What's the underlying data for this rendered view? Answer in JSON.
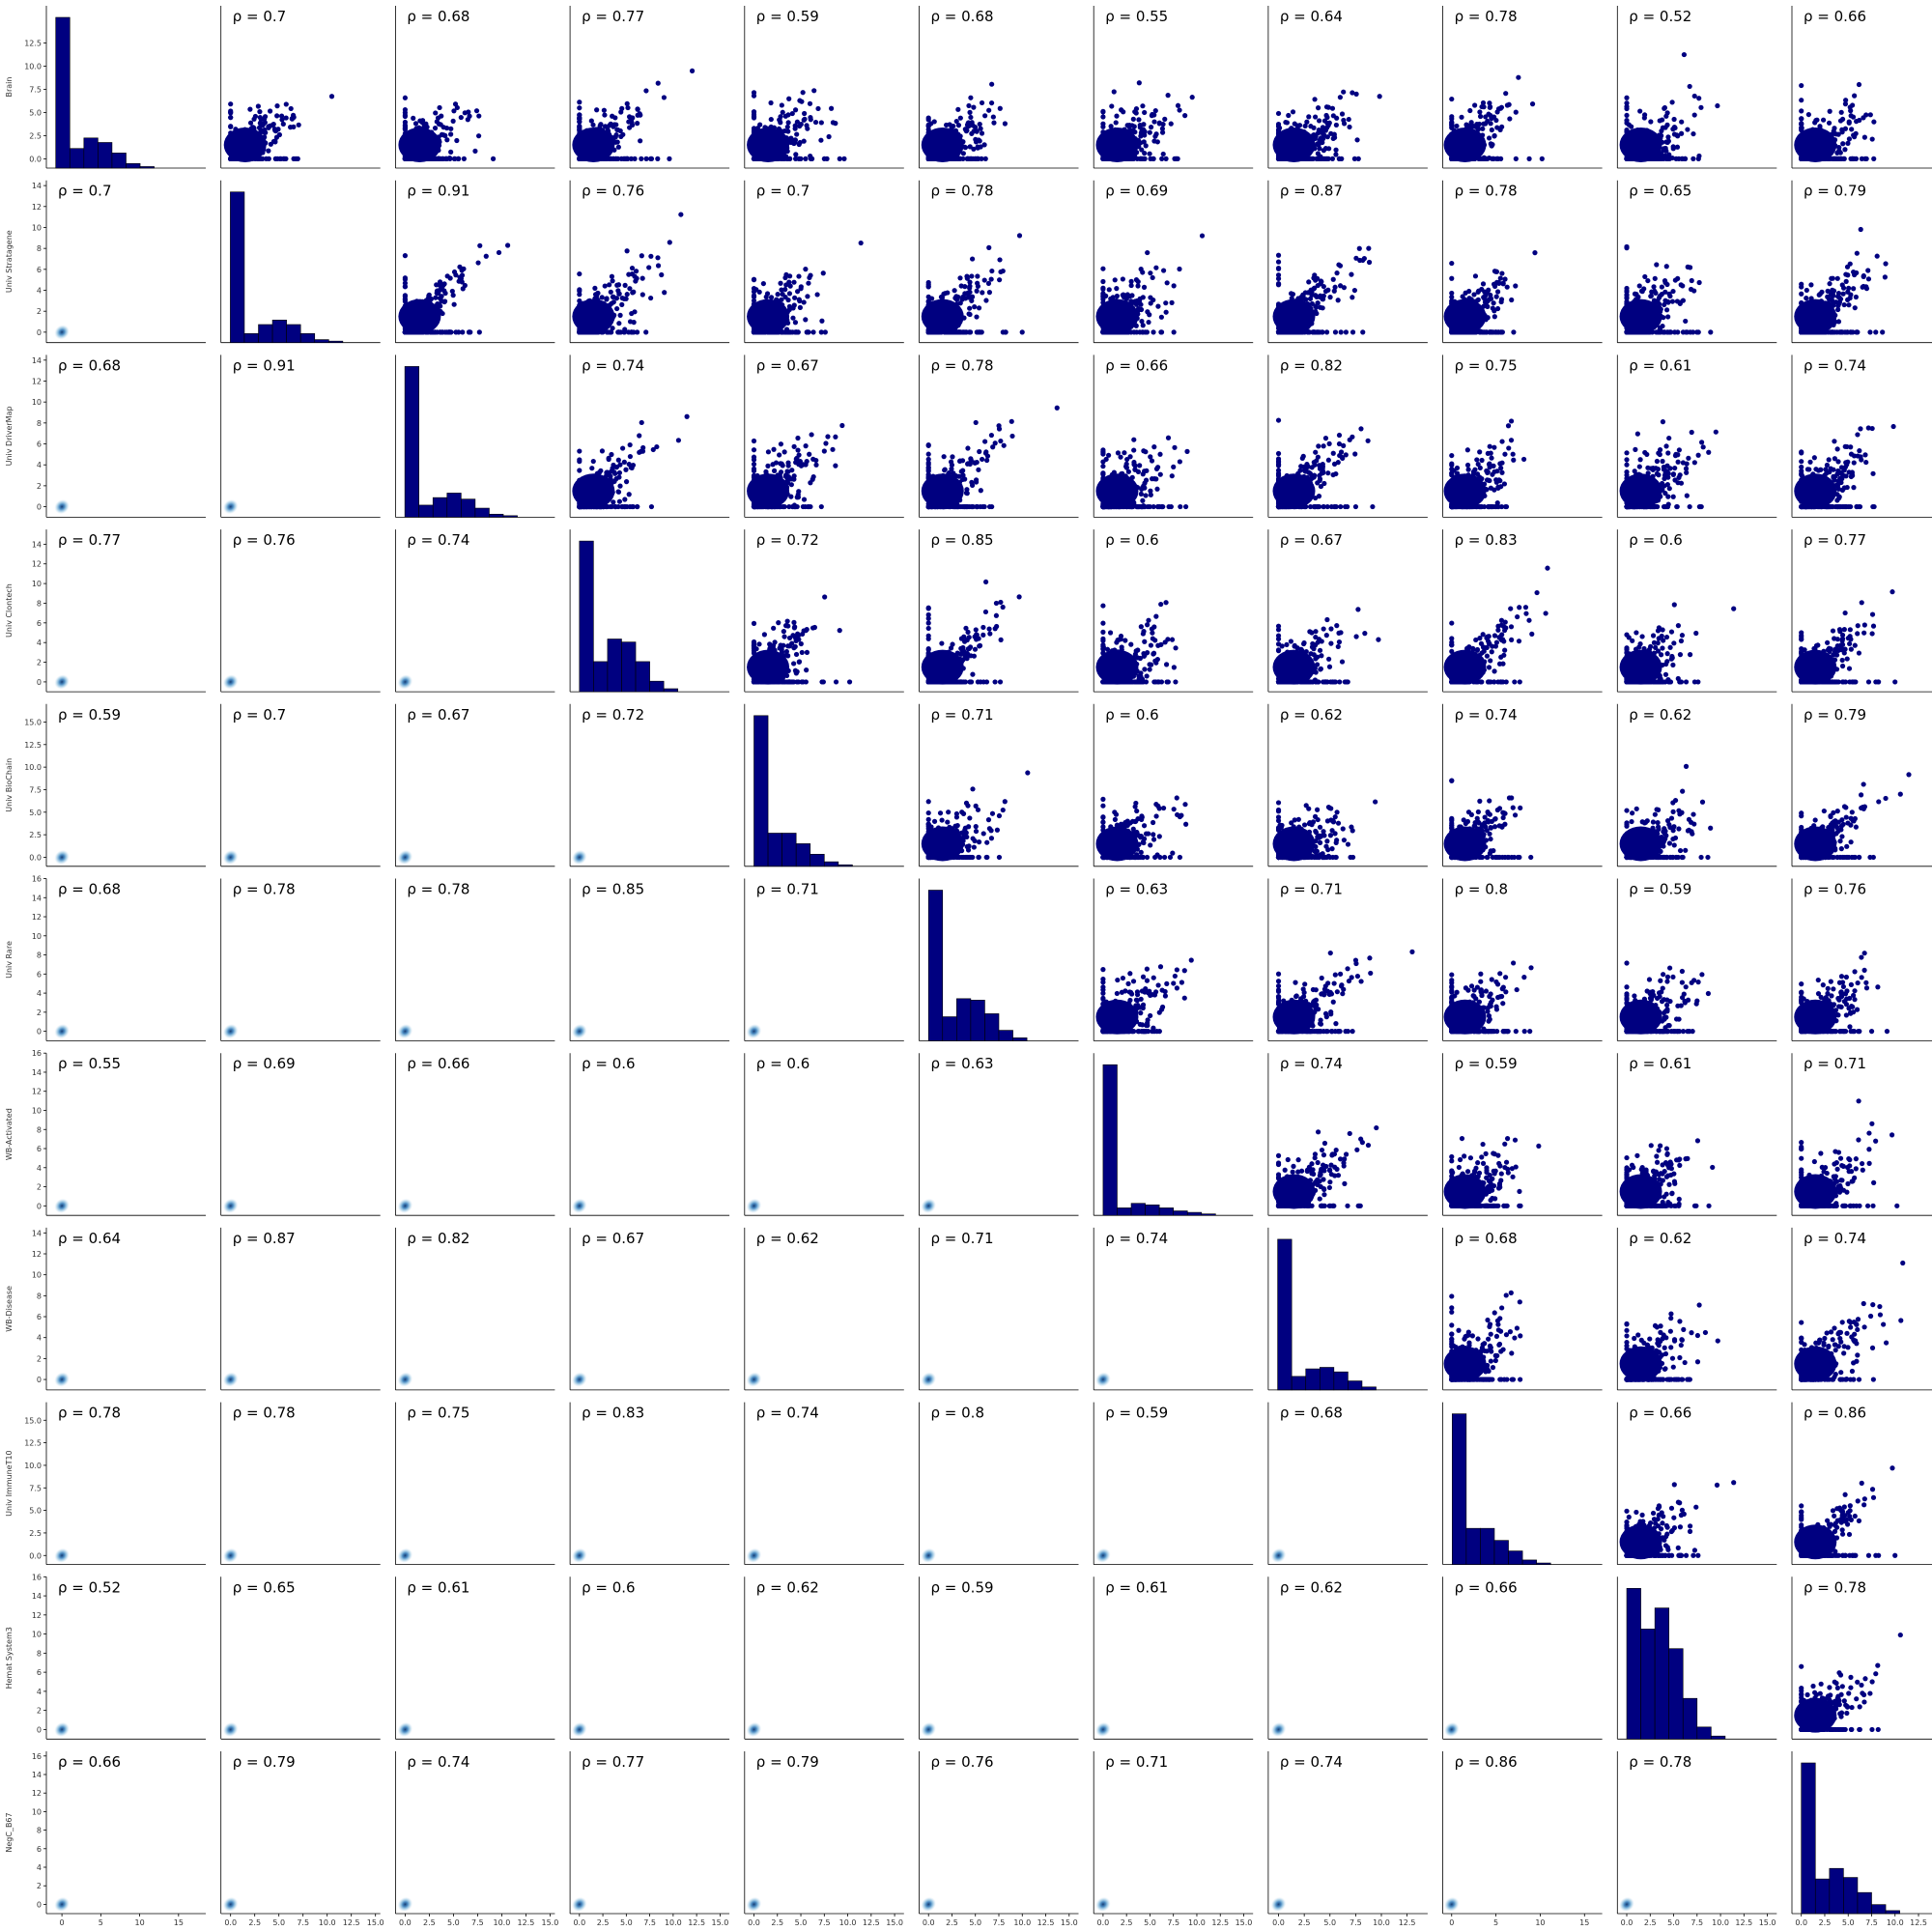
{
  "chart_data": {
    "type": "pairplot",
    "variables": [
      "Brain",
      "Univ Stratagene",
      "Univ DriverMap",
      "Univ Clontech",
      "Univ BioChain",
      "Univ Rare",
      "WB-Activated",
      "WB-Disease",
      "Univ ImmuneT10",
      "Hemat System3",
      "NegC_B67"
    ],
    "correlations": [
      [
        null,
        0.7,
        0.68,
        0.77,
        0.59,
        0.68,
        0.55,
        0.64,
        0.78,
        0.52,
        0.66
      ],
      [
        0.7,
        null,
        0.91,
        0.76,
        0.7,
        0.78,
        0.69,
        0.87,
        0.78,
        0.65,
        0.79
      ],
      [
        0.68,
        0.91,
        null,
        0.74,
        0.67,
        0.78,
        0.66,
        0.82,
        0.75,
        0.61,
        0.74
      ],
      [
        0.77,
        0.76,
        0.74,
        null,
        0.72,
        0.85,
        0.6,
        0.67,
        0.83,
        0.6,
        0.77
      ],
      [
        0.59,
        0.7,
        0.67,
        0.72,
        null,
        0.71,
        0.6,
        0.62,
        0.74,
        0.62,
        0.79
      ],
      [
        0.68,
        0.78,
        0.78,
        0.85,
        0.71,
        null,
        0.63,
        0.71,
        0.8,
        0.59,
        0.76
      ],
      [
        0.55,
        0.69,
        0.66,
        0.6,
        0.6,
        0.63,
        null,
        0.74,
        0.59,
        0.61,
        0.71
      ],
      [
        0.64,
        0.87,
        0.82,
        0.67,
        0.62,
        0.71,
        0.74,
        null,
        0.68,
        0.62,
        0.74
      ],
      [
        0.78,
        0.78,
        0.75,
        0.83,
        0.74,
        0.8,
        0.59,
        0.68,
        null,
        0.66,
        0.86
      ],
      [
        0.52,
        0.65,
        0.61,
        0.6,
        0.62,
        0.59,
        0.61,
        0.62,
        0.66,
        null,
        0.78
      ],
      [
        0.66,
        0.79,
        0.74,
        0.77,
        0.79,
        0.76,
        0.71,
        0.74,
        0.86,
        0.78,
        null
      ]
    ],
    "diagonal_histograms": {
      "bin_edges": [
        0,
        1.5,
        3,
        4.5,
        6,
        7.5,
        9,
        10.5,
        12,
        13.5,
        15
      ],
      "relative_heights": [
        [
          1.0,
          0.13,
          0.2,
          0.17,
          0.1,
          0.03,
          0.01,
          0,
          0,
          0
        ],
        [
          1.0,
          0.06,
          0.12,
          0.15,
          0.12,
          0.06,
          0.02,
          0.01,
          0,
          0
        ],
        [
          1.0,
          0.08,
          0.13,
          0.16,
          0.12,
          0.06,
          0.02,
          0.01,
          0,
          0
        ],
        [
          1.0,
          0.2,
          0.35,
          0.33,
          0.2,
          0.07,
          0.02,
          0,
          0,
          0
        ],
        [
          1.0,
          0.22,
          0.22,
          0.15,
          0.08,
          0.03,
          0.01,
          0,
          0,
          0
        ],
        [
          1.0,
          0.16,
          0.28,
          0.27,
          0.18,
          0.07,
          0.02,
          0,
          0,
          0
        ],
        [
          1.0,
          0.05,
          0.08,
          0.07,
          0.05,
          0.03,
          0.02,
          0.01,
          0,
          0
        ],
        [
          1.0,
          0.09,
          0.14,
          0.15,
          0.12,
          0.06,
          0.02,
          0,
          0,
          0
        ],
        [
          1.0,
          0.24,
          0.24,
          0.16,
          0.09,
          0.03,
          0.01,
          0,
          0,
          0
        ],
        [
          1.0,
          0.73,
          0.87,
          0.6,
          0.27,
          0.08,
          0.02,
          0,
          0,
          0
        ],
        [
          1.0,
          0.23,
          0.3,
          0.24,
          0.14,
          0.06,
          0.02,
          0,
          0,
          0
        ]
      ]
    },
    "row_ylims": [
      [
        -1,
        16.5
      ],
      [
        -1,
        14.5
      ],
      [
        -1,
        14.5
      ],
      [
        -1,
        15.5
      ],
      [
        -1,
        17
      ],
      [
        -1,
        16
      ],
      [
        -1,
        16
      ],
      [
        -1,
        14.5
      ],
      [
        -1,
        17
      ],
      [
        -1,
        16
      ],
      [
        -1,
        16.5
      ]
    ],
    "row_yticks": [
      [
        "0.0",
        "2.5",
        "5.0",
        "7.5",
        "10.0",
        "12.5"
      ],
      [
        "0",
        "2",
        "4",
        "6",
        "8",
        "10",
        "12",
        "14"
      ],
      [
        "0",
        "2",
        "4",
        "6",
        "8",
        "10",
        "12",
        "14"
      ],
      [
        "0",
        "2",
        "4",
        "6",
        "8",
        "10",
        "12",
        "14"
      ],
      [
        "0.0",
        "2.5",
        "5.0",
        "7.5",
        "10.0",
        "12.5",
        "15.0"
      ],
      [
        "0",
        "2",
        "4",
        "6",
        "8",
        "10",
        "12",
        "14",
        "16"
      ],
      [
        "0",
        "2",
        "4",
        "6",
        "8",
        "10",
        "12",
        "14",
        "16"
      ],
      [
        "0",
        "2",
        "4",
        "6",
        "8",
        "10",
        "12",
        "14"
      ],
      [
        "0.0",
        "2.5",
        "5.0",
        "7.5",
        "10.0",
        "12.5",
        "15.0"
      ],
      [
        "0",
        "2",
        "4",
        "6",
        "8",
        "10",
        "12",
        "14",
        "16"
      ],
      [
        "0",
        "2",
        "4",
        "6",
        "8",
        "10",
        "12",
        "14",
        "16"
      ]
    ],
    "col_xlims": [
      [
        -2,
        18.5
      ],
      [
        -1,
        15.5
      ],
      [
        -1,
        15.5
      ],
      [
        -1,
        16
      ],
      [
        -1,
        16
      ],
      [
        -1,
        16
      ],
      [
        -1,
        16
      ],
      [
        -1,
        14.5
      ],
      [
        -1,
        17
      ],
      [
        -1,
        16
      ],
      [
        -1,
        16
      ]
    ],
    "col_xticks": [
      [
        "0",
        "5",
        "10",
        "15"
      ],
      [
        "0.0",
        "2.5",
        "5.0",
        "7.5",
        "10.0",
        "12.5",
        "15.0"
      ],
      [
        "0.0",
        "2.5",
        "5.0",
        "7.5",
        "10.0",
        "12.5",
        "15.0"
      ],
      [
        "0.0",
        "2.5",
        "5.0",
        "7.5",
        "10.0",
        "12.5",
        "15.0"
      ],
      [
        "0.0",
        "2.5",
        "5.0",
        "7.5",
        "10.0",
        "12.5",
        "15.0"
      ],
      [
        "0.0",
        "2.5",
        "5.0",
        "7.5",
        "10.0",
        "12.5",
        "15.0"
      ],
      [
        "0.0",
        "2.5",
        "5.0",
        "7.5",
        "10.0",
        "12.5",
        "15.0"
      ],
      [
        "0.0",
        "2.5",
        "5.0",
        "7.5",
        "10.0",
        "12.5"
      ],
      [
        "0",
        "5",
        "10",
        "15"
      ],
      [
        "0.0",
        "2.5",
        "5.0",
        "7.5",
        "10.0",
        "12.5",
        "15.0"
      ],
      [
        "0.0",
        "2.5",
        "5.0",
        "7.5",
        "10.0",
        "12.5",
        "15.0"
      ]
    ],
    "upper": "scatter",
    "diagonal": "histogram",
    "lower": "kde",
    "rho_prefix": "ρ = ",
    "colors": {
      "points": "#000080",
      "hist_fill": "#000080",
      "kde": "#1f77b4"
    },
    "grid": false,
    "legend": "none"
  }
}
